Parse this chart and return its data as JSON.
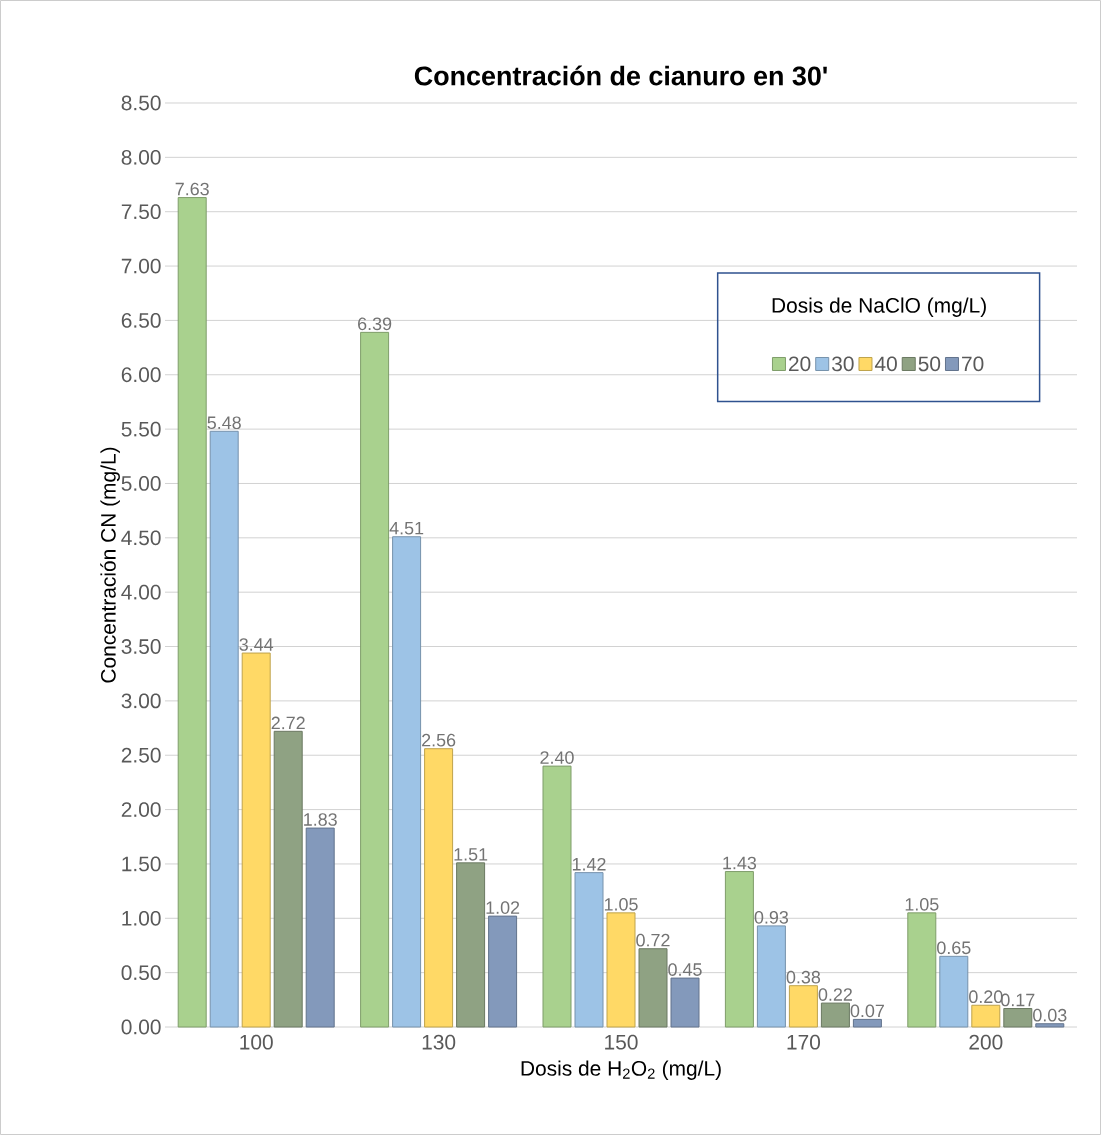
{
  "chart_data": {
    "type": "bar",
    "title": "Concentración de cianuro en 30'",
    "xlabel": "Dosis de H$_{2}$O$_{2}$ (mg/L)",
    "ylabel": "Concentración CN (mg/L)",
    "legend_title": "Dosis de NaClO (mg/L)",
    "legend": "top right",
    "grid": "y",
    "categories": [
      "100",
      "130",
      "150",
      "170",
      "200"
    ],
    "ylim": [
      0,
      8.5
    ],
    "yticks": [
      {
        "value": 0,
        "label": "0.00"
      },
      {
        "value": 0.5,
        "label": "0.50"
      },
      {
        "value": 1,
        "label": "1.00"
      },
      {
        "value": 1.5,
        "label": "1.50"
      },
      {
        "value": 2,
        "label": "2.00"
      },
      {
        "value": 2.5,
        "label": "2.50"
      },
      {
        "value": 3,
        "label": "3.00"
      },
      {
        "value": 3.5,
        "label": "3.50"
      },
      {
        "value": 4,
        "label": "4.00"
      },
      {
        "value": 4.5,
        "label": "4.50"
      },
      {
        "value": 5,
        "label": "5.00"
      },
      {
        "value": 5.5,
        "label": "5.50"
      },
      {
        "value": 6,
        "label": "6.00"
      },
      {
        "value": 6.5,
        "label": "6.50"
      },
      {
        "value": 7,
        "label": "7.00"
      },
      {
        "value": 7.5,
        "label": "7.50"
      },
      {
        "value": 8,
        "label": "8.00"
      },
      {
        "value": 8.5,
        "label": "8.50"
      }
    ],
    "series": [
      {
        "name": "20",
        "color": "#a9d18e",
        "values": [
          7.63,
          6.39,
          2.4,
          1.43,
          1.05
        ],
        "value_labels": [
          "7.63",
          "6.39",
          "2.40",
          "1.43",
          "1.05"
        ]
      },
      {
        "name": "30",
        "color": "#9dc3e6",
        "values": [
          5.48,
          4.51,
          1.42,
          0.93,
          0.65
        ],
        "value_labels": [
          "5.48",
          "4.51",
          "1.42",
          "0.93",
          "0.65"
        ]
      },
      {
        "name": "40",
        "color": "#ffd966",
        "values": [
          3.44,
          2.56,
          1.05,
          0.38,
          0.2
        ],
        "value_labels": [
          "3.44",
          "2.56",
          "1.05",
          "0.38",
          "0.20"
        ]
      },
      {
        "name": "50",
        "color": "#8fa283",
        "values": [
          2.72,
          1.51,
          0.72,
          0.22,
          0.17
        ],
        "value_labels": [
          "2.72",
          "1.51",
          "0.72",
          "0.22",
          "0.17"
        ]
      },
      {
        "name": "70",
        "color": "#8399bb",
        "values": [
          1.83,
          1.02,
          0.45,
          0.07,
          0.03
        ],
        "value_labels": [
          "1.83",
          "1.02",
          "0.45",
          "0.07",
          "0.03"
        ]
      }
    ]
  }
}
